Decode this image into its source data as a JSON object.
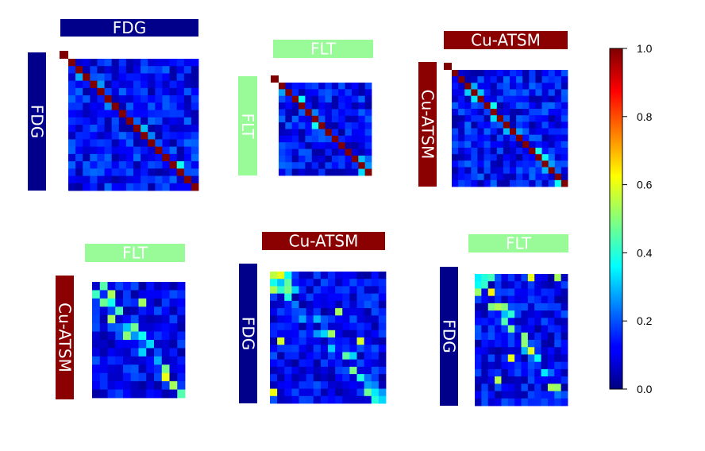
{
  "colors": {
    "FDG": "#00008b",
    "FLT": "#98fb98",
    "Cu-ATSM": "#8b0000"
  },
  "chart_data": {
    "type": "heatmap",
    "colorscale": "jet",
    "colorbar": {
      "range": [
        0,
        1
      ],
      "ticks": [
        "0.0",
        "0.2",
        "0.4",
        "0.6",
        "0.8",
        "1.0"
      ]
    },
    "panels": [
      {
        "col_label": "FDG",
        "row_label": "FDG",
        "rows": 18,
        "cols": 18,
        "self": true,
        "seed": 11
      },
      {
        "col_label": "FLT",
        "row_label": "FLT",
        "rows": 14,
        "cols": 14,
        "self": true,
        "seed": 23
      },
      {
        "col_label": "Cu-ATSM",
        "row_label": "Cu-ATSM",
        "rows": 18,
        "cols": 18,
        "self": true,
        "seed": 37
      },
      {
        "col_label": "FLT",
        "row_label": "Cu-ATSM",
        "rows": 14,
        "cols": 12,
        "self": false,
        "seed": 41
      },
      {
        "col_label": "Cu-ATSM",
        "row_label": "FDG",
        "rows": 18,
        "cols": 16,
        "self": false,
        "seed": 53
      },
      {
        "col_label": "FLT",
        "row_label": "FDG",
        "rows": 18,
        "cols": 14,
        "self": false,
        "seed": 67
      }
    ]
  }
}
